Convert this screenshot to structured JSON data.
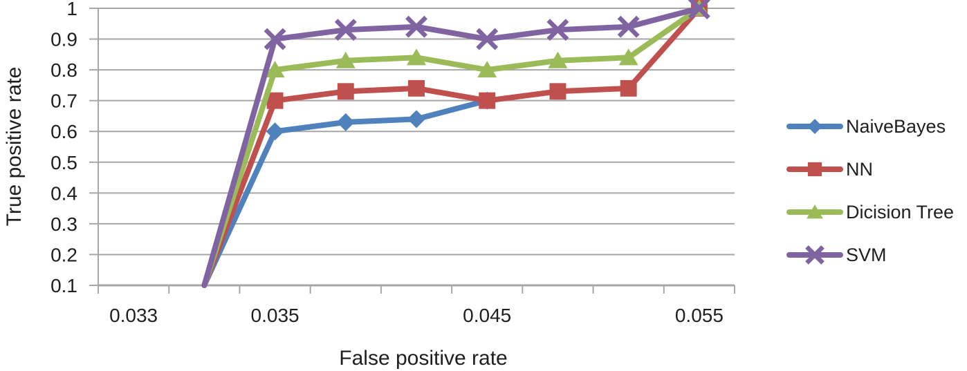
{
  "chart_data": {
    "type": "line",
    "title": "",
    "xlabel": "False positive rate",
    "ylabel": "True positive rate",
    "ylim": [
      0.1,
      1.0
    ],
    "grid": "horizontal",
    "y_tick_labels": [
      "0.1",
      "0.2",
      "0.3",
      "0.4",
      "0.5",
      "0.6",
      "0.7",
      "0.8",
      "0.9",
      "1"
    ],
    "x_axis": {
      "kind": "category",
      "num_categories": 9,
      "tick_labels": [
        {
          "label": "0.033",
          "category": 0
        },
        {
          "label": "0.035",
          "category": 2
        },
        {
          "label": "0.045",
          "category": 5
        },
        {
          "label": "0.055",
          "category": 8
        }
      ]
    },
    "first_point_marker": false,
    "series": [
      {
        "name": "NaiveBayes",
        "color": "#4F81BD",
        "marker": "diamond",
        "points": [
          [
            1,
            0.1
          ],
          [
            2,
            0.6
          ],
          [
            3,
            0.63
          ],
          [
            4,
            0.64
          ],
          [
            5,
            0.7
          ]
        ]
      },
      {
        "name": "NN",
        "color": "#C0504D",
        "marker": "square",
        "points": [
          [
            1,
            0.1
          ],
          [
            2,
            0.7
          ],
          [
            3,
            0.73
          ],
          [
            4,
            0.74
          ],
          [
            5,
            0.7
          ],
          [
            6,
            0.73
          ],
          [
            7,
            0.74
          ],
          [
            8,
            1.0
          ]
        ]
      },
      {
        "name": "Dicision Tree",
        "color": "#9BBB59",
        "marker": "triangle",
        "points": [
          [
            1,
            0.1
          ],
          [
            2,
            0.8
          ],
          [
            3,
            0.83
          ],
          [
            4,
            0.84
          ],
          [
            5,
            0.8
          ],
          [
            6,
            0.83
          ],
          [
            7,
            0.84
          ],
          [
            8,
            1.0
          ]
        ]
      },
      {
        "name": "SVM",
        "color": "#8064A2",
        "marker": "x",
        "points": [
          [
            1,
            0.1
          ],
          [
            2,
            0.9
          ],
          [
            3,
            0.93
          ],
          [
            4,
            0.94
          ],
          [
            5,
            0.9
          ],
          [
            6,
            0.93
          ],
          [
            7,
            0.94
          ],
          [
            8,
            1.0
          ]
        ]
      }
    ],
    "legend": {
      "position": "right",
      "entries": [
        "NaiveBayes",
        "NN",
        "Dicision Tree",
        "SVM"
      ]
    },
    "colors": {
      "gridline": "#A6A6A6",
      "axis": "#A6A6A6",
      "text": "#1F1F1F",
      "background": "#FFFFFF"
    }
  }
}
